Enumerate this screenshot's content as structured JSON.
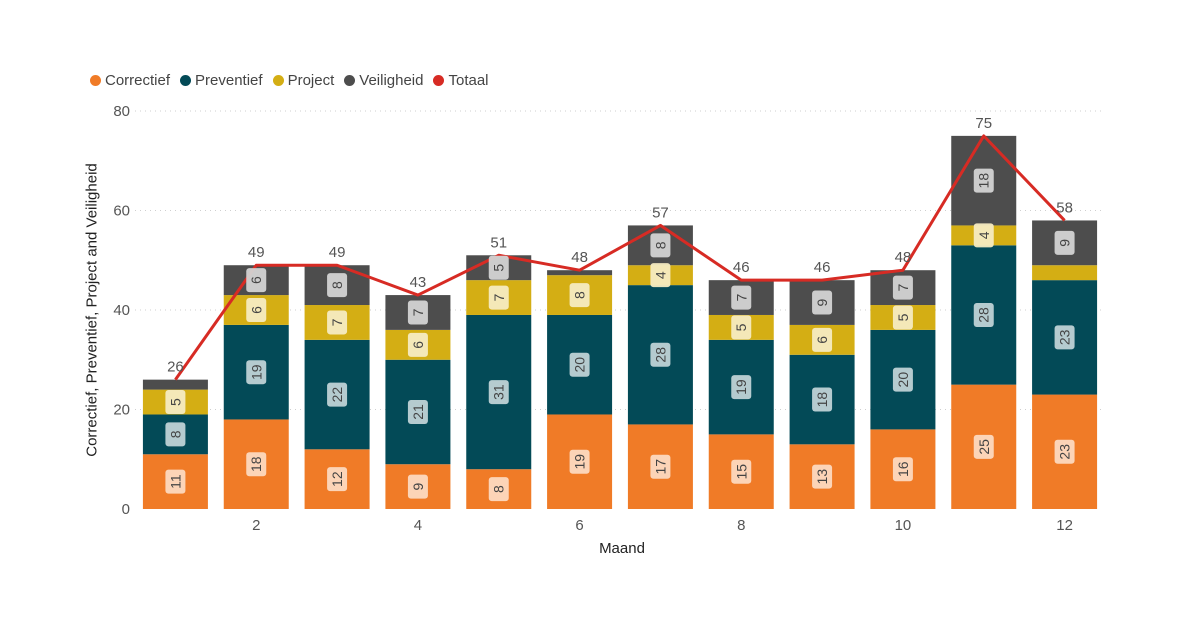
{
  "legend": [
    {
      "label": "Correctief",
      "color": "#F07B27"
    },
    {
      "label": "Preventief",
      "color": "#034A57"
    },
    {
      "label": "Project",
      "color": "#D4AE14"
    },
    {
      "label": "Veiligheid",
      "color": "#4D4D4D"
    },
    {
      "label": "Totaal",
      "color": "#D72B24"
    }
  ],
  "axis": {
    "ylabel": "Correctief, Preventief, Project and Veiligheid",
    "xlabel": "Maand"
  },
  "chart_data": {
    "type": "bar",
    "stacked": true,
    "categories": [
      1,
      2,
      3,
      4,
      5,
      6,
      7,
      8,
      9,
      10,
      11,
      12
    ],
    "x_tick_labels": [
      "2",
      "4",
      "6",
      "8",
      "10",
      "12"
    ],
    "x_ticks": [
      2,
      4,
      6,
      8,
      10,
      12
    ],
    "ylim": [
      0,
      80
    ],
    "y_ticks": [
      0,
      20,
      40,
      60,
      80
    ],
    "grid": true,
    "legend_position": "top-left",
    "series": [
      {
        "name": "Correctief",
        "color": "#F07B27",
        "label_bg": "#FCD9BF",
        "values": [
          11,
          18,
          12,
          9,
          8,
          19,
          17,
          15,
          13,
          16,
          25,
          23
        ]
      },
      {
        "name": "Preventief",
        "color": "#034A57",
        "label_bg": "#BFD2D6",
        "values": [
          8,
          19,
          22,
          21,
          31,
          20,
          28,
          19,
          18,
          20,
          28,
          23
        ]
      },
      {
        "name": "Project",
        "color": "#D4AE14",
        "label_bg": "#F5EBC1",
        "values": [
          5,
          6,
          7,
          6,
          7,
          8,
          4,
          5,
          6,
          5,
          4,
          3
        ]
      },
      {
        "name": "Veiligheid",
        "color": "#4D4D4D",
        "label_bg": "#D3D3D3",
        "values": [
          2,
          6,
          8,
          7,
          5,
          1,
          8,
          7,
          9,
          7,
          18,
          9
        ]
      }
    ],
    "show_labels": [
      [
        true,
        true,
        true,
        true,
        true,
        true,
        true,
        true,
        true,
        true,
        true,
        true
      ],
      [
        true,
        true,
        true,
        true,
        true,
        true,
        true,
        true,
        true,
        true,
        true,
        true
      ],
      [
        true,
        true,
        true,
        true,
        true,
        true,
        true,
        true,
        true,
        true,
        true,
        false
      ],
      [
        false,
        true,
        true,
        true,
        true,
        false,
        true,
        true,
        true,
        true,
        true,
        true
      ]
    ],
    "line": {
      "name": "Totaal",
      "color": "#D72B24",
      "values": [
        26,
        49,
        49,
        43,
        51,
        48,
        57,
        46,
        46,
        48,
        75,
        58
      ]
    }
  }
}
